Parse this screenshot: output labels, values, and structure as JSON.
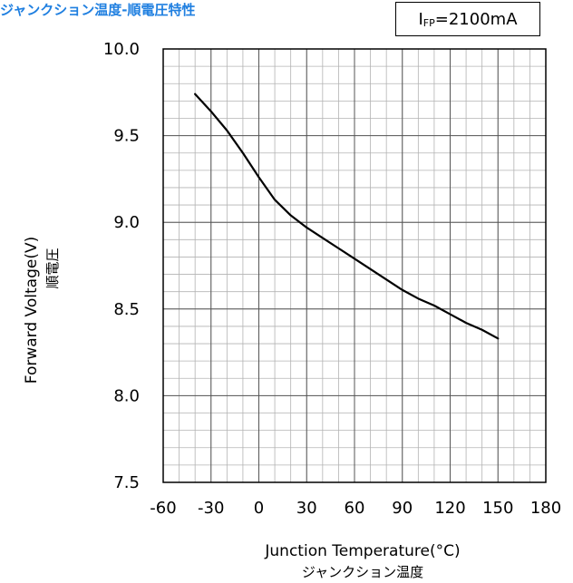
{
  "title": "ジャンクション温度-順電圧特性",
  "condition": {
    "main": "I",
    "sub": "FP",
    "rest": "=2100mA"
  },
  "chart_data": {
    "type": "line",
    "title": "ジャンクション温度-順電圧特性",
    "xlabel": "Junction Temperature(°C)",
    "xlabel_jp": "ジャンクション温度",
    "ylabel": "Forward Voltage(V)",
    "ylabel_jp": "順電圧",
    "xlim": [
      -60,
      180
    ],
    "ylim": [
      7.5,
      10.0
    ],
    "x_ticks": [
      -60,
      -30,
      0,
      30,
      60,
      90,
      120,
      150,
      180
    ],
    "x_tick_labels": [
      "-60",
      "-30",
      "0",
      "30",
      "60",
      "90",
      "120",
      "150",
      "180"
    ],
    "y_ticks": [
      7.5,
      8.0,
      8.5,
      9.0,
      9.5,
      10.0
    ],
    "y_tick_labels": [
      "7.5",
      "8.0",
      "8.5",
      "9.0",
      "9.5",
      "10.0"
    ],
    "grid": true,
    "minor_grid": {
      "x_step": 10,
      "y_step": 0.1
    },
    "line_color": "#000000",
    "series": [
      {
        "x": [
          -40,
          -30,
          -20,
          -10,
          0,
          10,
          20,
          30,
          40,
          50,
          60,
          70,
          80,
          90,
          100,
          110,
          120,
          130,
          140,
          150
        ],
        "y": [
          9.74,
          9.64,
          9.53,
          9.4,
          9.26,
          9.13,
          9.04,
          8.97,
          8.91,
          8.85,
          8.79,
          8.73,
          8.67,
          8.61,
          8.56,
          8.52,
          8.47,
          8.42,
          8.38,
          8.33
        ]
      }
    ]
  }
}
